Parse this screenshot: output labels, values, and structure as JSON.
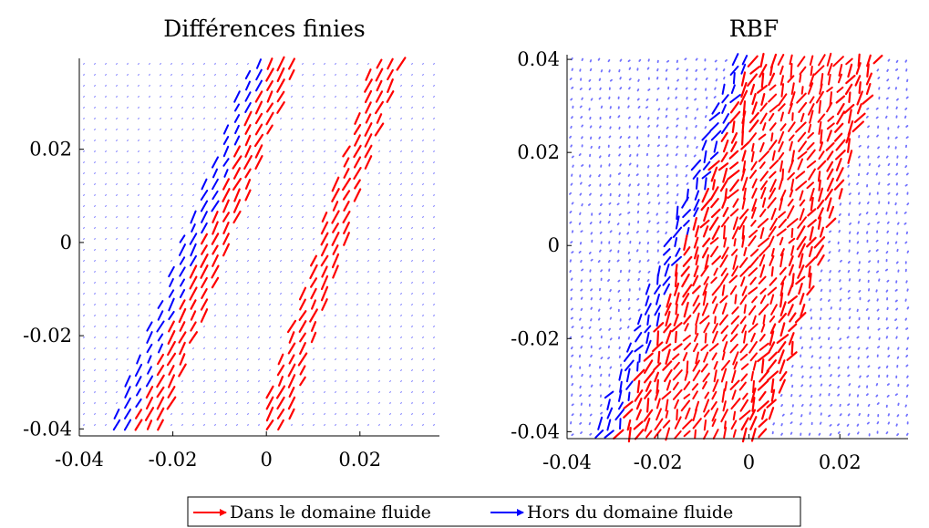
{
  "chart_data": [
    {
      "type": "quiver",
      "title": "Différences finies",
      "xlabel": "",
      "ylabel": "",
      "xlim": [
        -0.04,
        0.037
      ],
      "ylim": [
        -0.0415,
        0.0395
      ],
      "xticks": [
        "-0.04",
        "-0.02",
        "0",
        "0.02"
      ],
      "yticks": [
        "-0.04",
        "-0.02",
        "0",
        "0.02"
      ],
      "grid": false,
      "series": [
        {
          "name": "Dans le domaine fluide",
          "color": "#ff0000",
          "band_x_at_ymin": [
            -0.026,
            0.001
          ],
          "band_x_at_ymax": [
            0.004,
            0.026
          ]
        },
        {
          "name": "Hors du domaine fluide",
          "color": "#0000ff",
          "band_x_at_ymin": [
            -0.031,
            0.001
          ],
          "band_x_at_ymax": [
            0.0,
            0.026
          ]
        }
      ]
    },
    {
      "type": "quiver",
      "title": "RBF",
      "xlabel": "",
      "ylabel": "",
      "xlim": [
        -0.04,
        0.035
      ],
      "ylim": [
        -0.0415,
        0.041
      ],
      "xticks": [
        "-0.04",
        "-0.02",
        "0",
        "0.02"
      ],
      "yticks": [
        "-0.04",
        "-0.02",
        "0",
        "0.02",
        "0.04"
      ],
      "grid": false,
      "series": [
        {
          "name": "Dans le domaine fluide",
          "color": "#ff0000",
          "band_x_at_ymin": [
            -0.026,
            0.001
          ],
          "band_x_at_ymax": [
            0.004,
            0.026
          ]
        },
        {
          "name": "Hors du domaine fluide",
          "color": "#0000ff",
          "band_x_at_ymin": [
            -0.031,
            0.001
          ],
          "band_x_at_ymax": [
            0.0,
            0.026
          ]
        }
      ]
    }
  ],
  "legend": {
    "placement": "bottom-center",
    "items": [
      {
        "label": "Dans le domaine fluide",
        "color": "#ff0000"
      },
      {
        "label": "Hors du domaine fluide",
        "color": "#0000ff"
      }
    ]
  }
}
